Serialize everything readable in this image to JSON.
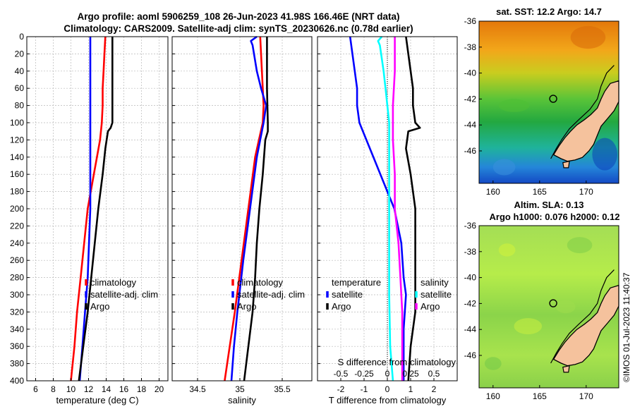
{
  "header": {
    "line1": "Argo profile: aoml 5906259_108 26-Jun-2023 41.98S 166.46E (NRT data)",
    "line2": "Climatology: CARS2009. Satellite-adj clim: synTS_20230626.nc (0.78d earlier)"
  },
  "depth_axis": {
    "range": [
      0,
      400
    ],
    "ticks": [
      0,
      20,
      40,
      60,
      80,
      100,
      120,
      140,
      160,
      180,
      200,
      220,
      240,
      260,
      280,
      300,
      320,
      340,
      360,
      380,
      400
    ]
  },
  "chart_data": [
    {
      "type": "line",
      "id": "temperature",
      "xlabel": "temperature (deg C)",
      "xlim": [
        5,
        21
      ],
      "xticks": [
        "6",
        "8",
        "10",
        "12",
        "14",
        "16",
        "18",
        "20"
      ],
      "xtick_values": [
        6,
        8,
        10,
        12,
        14,
        16,
        18,
        20
      ],
      "ylim": [
        0,
        400
      ],
      "legend": {
        "position": "bottom-right",
        "entries": [
          "climatology",
          "satellite-adj. clim",
          "Argo"
        ]
      },
      "series": [
        {
          "name": "climatology",
          "color": "#ff0000",
          "depth": [
            0,
            20,
            40,
            60,
            80,
            100,
            120,
            160,
            200,
            240,
            280,
            320,
            360,
            400
          ],
          "values": [
            13.9,
            13.8,
            13.7,
            13.6,
            13.6,
            13.5,
            13.3,
            12.6,
            11.9,
            11.5,
            11.1,
            10.7,
            10.4,
            10.0
          ]
        },
        {
          "name": "satellite-adj. clim",
          "color": "#0000ff",
          "depth": [
            0,
            100,
            200,
            280,
            320,
            360,
            400
          ],
          "values": [
            12.2,
            12.2,
            12.2,
            11.9,
            11.6,
            11.3,
            11.0
          ]
        },
        {
          "name": "Argo",
          "color": "#000000",
          "depth": [
            0,
            20,
            40,
            60,
            80,
            100,
            106,
            110,
            130,
            160,
            200,
            240,
            280,
            320,
            360,
            400
          ],
          "values": [
            14.7,
            14.7,
            14.7,
            14.7,
            14.7,
            14.7,
            14.5,
            14.2,
            13.9,
            13.6,
            13.1,
            12.7,
            12.3,
            11.9,
            11.4,
            10.9
          ]
        }
      ]
    },
    {
      "type": "line",
      "id": "salinity",
      "xlabel": "salinity",
      "xlim": [
        34.2,
        35.85
      ],
      "xticks": [
        "34.5",
        "35",
        "35.5"
      ],
      "xtick_values": [
        34.5,
        35.0,
        35.5
      ],
      "ylim": [
        0,
        400
      ],
      "legend": {
        "position": "bottom-right",
        "entries": [
          "climatology",
          "satellite-adj. clim",
          "Argo"
        ]
      },
      "series": [
        {
          "name": "climatology",
          "color": "#ff0000",
          "depth": [
            0,
            20,
            40,
            60,
            80,
            100,
            140,
            200,
            260,
            320,
            360,
            400
          ],
          "values": [
            35.24,
            35.25,
            35.26,
            35.27,
            35.28,
            35.27,
            35.18,
            35.1,
            35.02,
            34.94,
            34.88,
            34.82
          ]
        },
        {
          "name": "satellite-adj. clim",
          "color": "#0000ff",
          "depth": [
            0,
            5,
            10,
            40,
            60,
            80,
            100,
            140,
            200,
            260,
            320,
            360,
            400
          ],
          "values": [
            35.2,
            35.13,
            35.15,
            35.2,
            35.25,
            35.31,
            35.28,
            35.2,
            35.12,
            35.04,
            34.97,
            34.93,
            34.9
          ]
        },
        {
          "name": "Argo",
          "color": "#000000",
          "depth": [
            0,
            5,
            20,
            60,
            100,
            110,
            120,
            160,
            200,
            240,
            280,
            320,
            360,
            400
          ],
          "values": [
            35.32,
            35.32,
            35.32,
            35.32,
            35.33,
            35.33,
            35.3,
            35.27,
            35.23,
            35.2,
            35.18,
            35.15,
            35.1,
            35.05
          ]
        }
      ]
    },
    {
      "type": "line",
      "id": "differences",
      "xlabel": "T difference from climatology",
      "xlim": [
        -3,
        3
      ],
      "xticks": [
        "-2",
        "-1",
        "0",
        "1",
        "2"
      ],
      "xtick_values": [
        -2,
        -1,
        0,
        1,
        2
      ],
      "x2label": "S difference from climatology",
      "x2lim": [
        -0.75,
        0.75
      ],
      "x2ticks": [
        "-0.5",
        "-0.25",
        "0",
        "0.25",
        "0.5"
      ],
      "x2tick_values": [
        -0.5,
        -0.25,
        0,
        0.25,
        0.5
      ],
      "ylim": [
        0,
        400
      ],
      "legend": {
        "position": "bottom",
        "left_title": "temperature",
        "right_title": "salinity",
        "entries": [
          "satellite",
          "Argo",
          "satellite",
          "Argo"
        ]
      },
      "series": [
        {
          "name": "temperature satellite",
          "color": "#0000ff",
          "axis": "T",
          "depth": [
            0,
            20,
            40,
            60,
            80,
            100,
            140,
            200,
            240,
            280,
            300,
            340,
            400
          ],
          "values": [
            -1.6,
            -1.5,
            -1.4,
            -1.3,
            -1.3,
            -1.2,
            -0.6,
            0.3,
            0.6,
            0.7,
            0.8,
            0.7,
            0.7
          ]
        },
        {
          "name": "temperature Argo",
          "color": "#000000",
          "axis": "T",
          "depth": [
            0,
            20,
            40,
            60,
            80,
            100,
            106,
            110,
            130,
            160,
            200,
            240,
            280,
            320,
            360,
            400
          ],
          "values": [
            0.8,
            0.9,
            1.0,
            1.1,
            1.1,
            1.2,
            1.4,
            0.9,
            0.8,
            1.0,
            1.2,
            1.2,
            1.2,
            1.2,
            1.0,
            0.9
          ]
        },
        {
          "name": "salinity satellite",
          "color": "#00ffff",
          "axis": "S",
          "depth": [
            0,
            5,
            10,
            40,
            60,
            80,
            100,
            150,
            200,
            300,
            360,
            400
          ],
          "values": [
            -0.06,
            -0.1,
            -0.08,
            -0.04,
            -0.02,
            0.0,
            0.02,
            0.02,
            0.02,
            0.02,
            0.03,
            0.06
          ]
        },
        {
          "name": "salinity Argo",
          "color": "#ff00ff",
          "axis": "S",
          "depth": [
            0,
            40,
            80,
            100,
            120,
            160,
            200,
            240,
            280,
            320,
            360,
            400
          ],
          "values": [
            0.08,
            0.08,
            0.06,
            0.06,
            0.06,
            0.08,
            0.08,
            0.12,
            0.14,
            0.16,
            0.16,
            0.16
          ]
        }
      ]
    }
  ],
  "maps": {
    "top": {
      "title": "sat. SST: 12.2 Argo: 14.7"
    },
    "bottom": {
      "title1": "Altim. SLA: 0.13",
      "title2": "Argo h1000: 0.076 h2000: 0.12"
    },
    "lon_ticks": [
      "160",
      "165",
      "170"
    ],
    "lon_tick_values": [
      160,
      165,
      170
    ],
    "lat_ticks": [
      "-36",
      "-38",
      "-40",
      "-42",
      "-44",
      "-46"
    ],
    "lat_tick_values": [
      -36,
      -38,
      -40,
      -42,
      -44,
      -46
    ],
    "lon_range": [
      158.5,
      173.5
    ],
    "lat_range": [
      -48.5,
      -36.0
    ],
    "float_position": {
      "lon": 166.46,
      "lat": -41.98
    }
  },
  "credit": "©IMOS 01-Jul-2023 11:40:37",
  "colors": {
    "land": "#f5c29d",
    "coast": "#000000",
    "marker": "#000000"
  }
}
